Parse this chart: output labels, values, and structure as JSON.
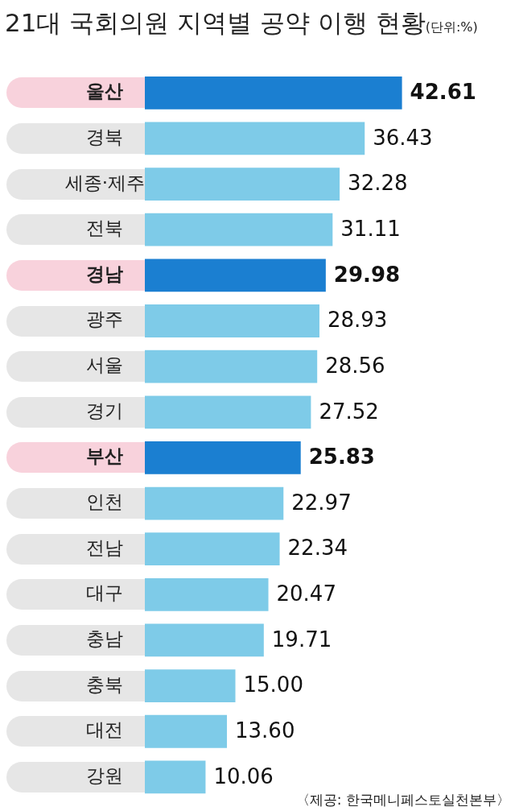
{
  "chart_data": {
    "type": "bar",
    "orientation": "horizontal",
    "title": "21대 국회의원 지역별 공약 이행 현황",
    "subtitle": "(단위:%)",
    "categories": [
      "울산",
      "경북",
      "세종·제주",
      "전북",
      "경남",
      "광주",
      "서울",
      "경기",
      "부산",
      "인천",
      "전남",
      "대구",
      "충남",
      "충북",
      "대전",
      "강원"
    ],
    "values": [
      42.61,
      36.43,
      32.28,
      31.11,
      29.98,
      28.93,
      28.56,
      27.52,
      25.83,
      22.97,
      22.34,
      20.47,
      19.71,
      15.0,
      13.6,
      10.06
    ],
    "value_labels": [
      "42.61",
      "36.43",
      "32.28",
      "31.11",
      "29.98",
      "28.93",
      "28.56",
      "27.52",
      "25.83",
      "22.97",
      "22.34",
      "20.47",
      "19.71",
      "15.00",
      "13.60",
      "10.06"
    ],
    "colors": [
      "#1b7fd1",
      "#7ecbe8",
      "#7ecbe8",
      "#7ecbe8",
      "#1b7fd1",
      "#7ecbe8",
      "#7ecbe8",
      "#7ecbe8",
      "#1b7fd1",
      "#7ecbe8",
      "#7ecbe8",
      "#7ecbe8",
      "#7ecbe8",
      "#7ecbe8",
      "#7ecbe8",
      "#7ecbe8"
    ],
    "tick_labels": "y",
    "annotations": [
      "〈제공: 한국메니페스토실천본부〉"
    ]
  }
}
